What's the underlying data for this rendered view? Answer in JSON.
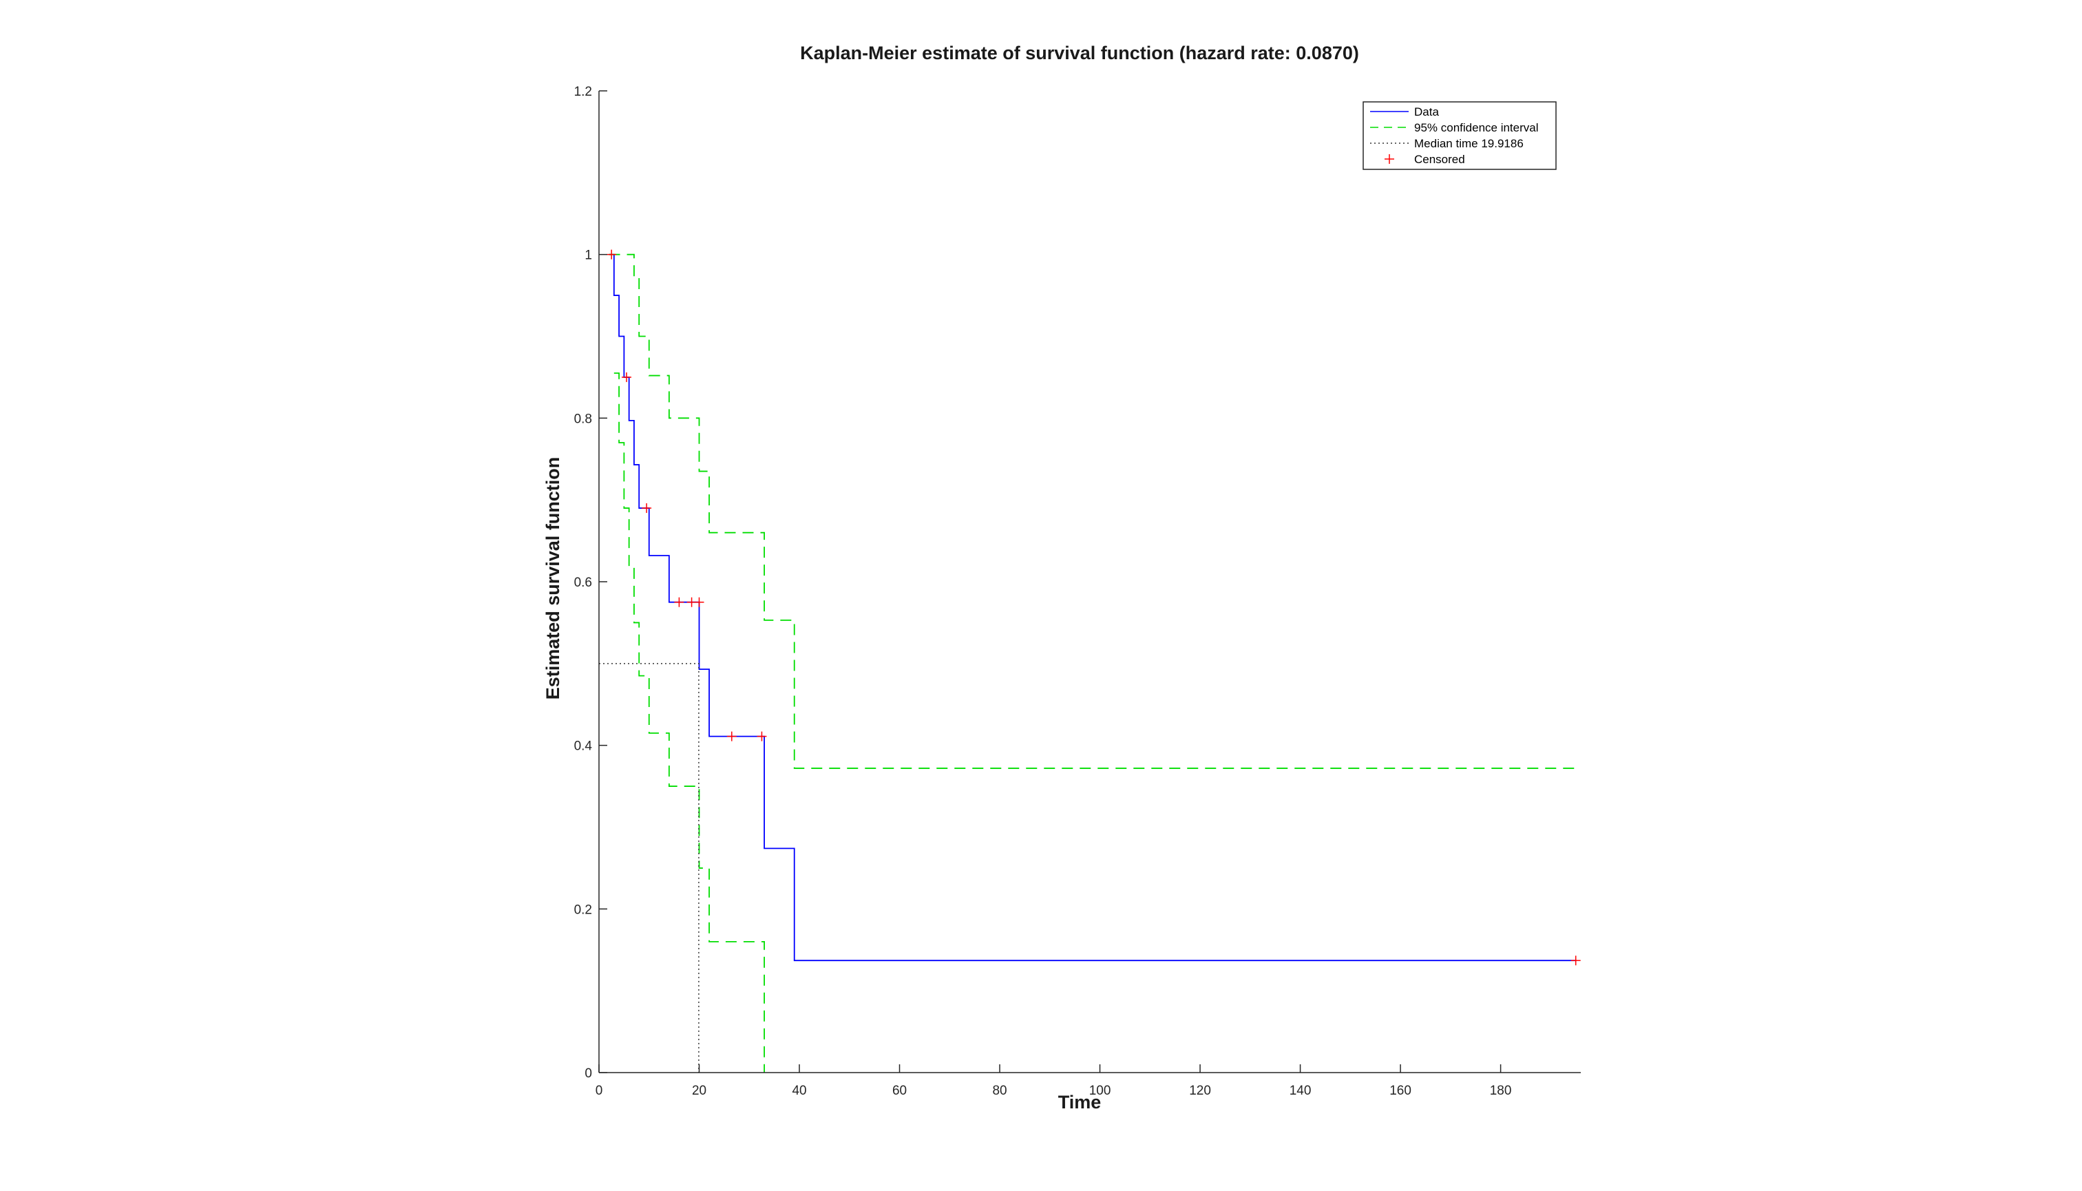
{
  "colors": {
    "data": "#0000ff",
    "ci": "#00dd00",
    "median": "#333333",
    "censored": "#ff0000",
    "axis": "#262626"
  },
  "chart_data": {
    "type": "line",
    "title": "Kaplan-Meier estimate of survival function (hazard rate: 0.0870)",
    "xlabel": "Time",
    "ylabel": "Estimated survival function",
    "xlim": [
      0,
      196
    ],
    "ylim": [
      0,
      1.2
    ],
    "xticks": [
      0,
      20,
      40,
      60,
      80,
      100,
      120,
      140,
      160,
      180
    ],
    "yticks": [
      0,
      0.2,
      0.4,
      0.6,
      0.8,
      1,
      1.2
    ],
    "xtick_labels": [
      "0",
      "20",
      "40",
      "60",
      "80",
      "100",
      "120",
      "140",
      "160",
      "180"
    ],
    "ytick_labels": [
      "0",
      "0.2",
      "0.4",
      "0.6",
      "0.8",
      "1",
      "1.2"
    ],
    "grid": false,
    "legend_position": "top-right",
    "legend": [
      "Data",
      "95% confidence interval",
      "Median time 19.9186",
      "Censored"
    ],
    "series": [
      {
        "name": "Data",
        "style": "step",
        "x": [
          2,
          3,
          4,
          5,
          6,
          7,
          8,
          10,
          14,
          20,
          22,
          33,
          39,
          195
        ],
        "y": [
          1,
          0.95,
          0.9,
          0.85,
          0.797,
          0.743,
          0.69,
          0.632,
          0.575,
          0.493,
          0.411,
          0.274,
          0.137,
          0.137
        ]
      },
      {
        "name": "95% confidence interval",
        "style": "step",
        "x": [
          2,
          6,
          7,
          8,
          10,
          14,
          20,
          22,
          33,
          39,
          195
        ],
        "y": [
          1,
          1,
          0.972,
          0.9,
          0.852,
          0.8,
          0.735,
          0.66,
          0.553,
          0.372,
          0.372
        ]
      },
      {
        "name": "95% confidence interval",
        "style": "step",
        "x": [
          3,
          4,
          5,
          6,
          7,
          8,
          10,
          14,
          20,
          22,
          33
        ],
        "y": [
          0.855,
          0.77,
          0.69,
          0.62,
          0.55,
          0.485,
          0.415,
          0.35,
          0.25,
          0.16,
          0
        ]
      },
      {
        "name": "Median time 19.9186",
        "style": "median",
        "x": [
          0,
          19.9186,
          19.9186
        ],
        "y": [
          0.5,
          0.5,
          0
        ]
      },
      {
        "name": "Censored",
        "style": "marker",
        "x": [
          2.5,
          5.5,
          9.5,
          16,
          18.5,
          20,
          26.5,
          32.5,
          195
        ],
        "y": [
          1,
          0.85,
          0.69,
          0.575,
          0.575,
          0.575,
          0.411,
          0.411,
          0.137
        ]
      }
    ]
  }
}
